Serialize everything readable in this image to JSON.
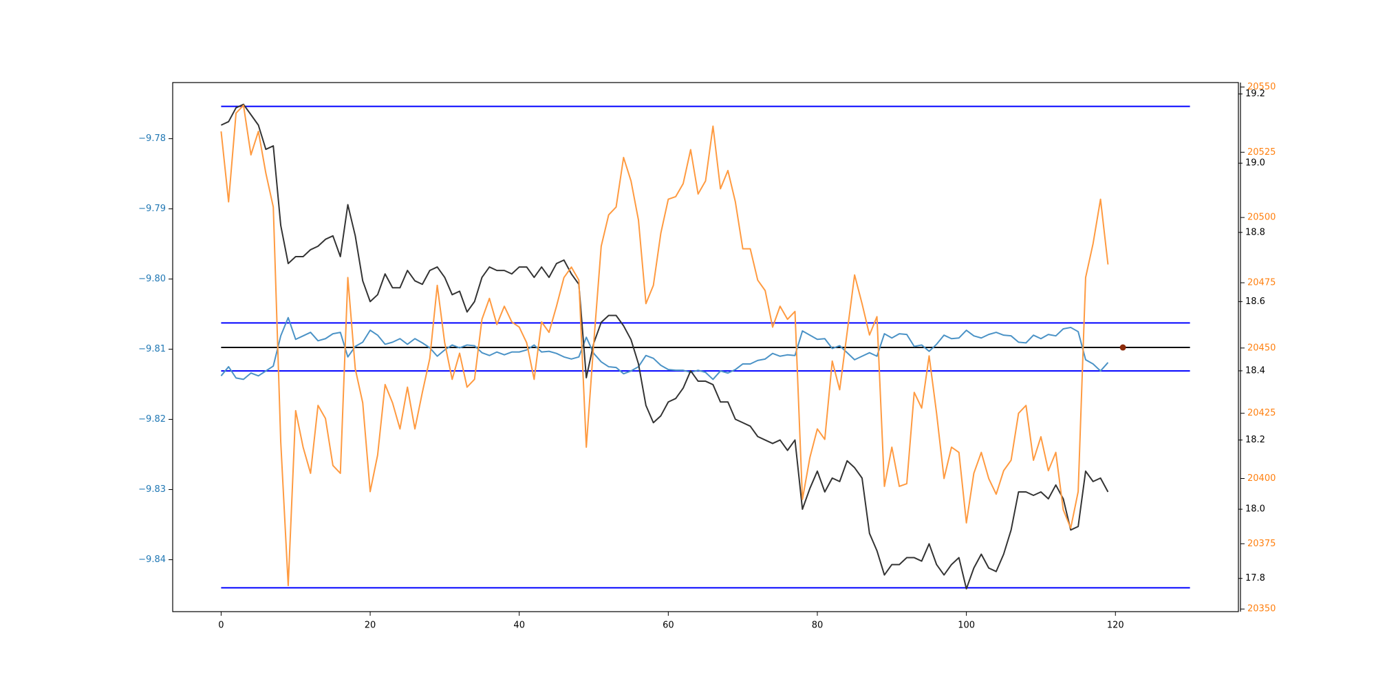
{
  "chart_data": {
    "type": "line",
    "x": [
      0,
      1,
      2,
      3,
      4,
      5,
      6,
      7,
      8,
      9,
      10,
      11,
      12,
      13,
      14,
      15,
      16,
      17,
      18,
      19,
      20,
      21,
      22,
      23,
      24,
      25,
      26,
      27,
      28,
      29,
      30,
      31,
      32,
      33,
      34,
      35,
      36,
      37,
      38,
      39,
      40,
      41,
      42,
      43,
      44,
      45,
      46,
      47,
      48,
      49,
      50,
      51,
      52,
      53,
      54,
      55,
      56,
      57,
      58,
      59,
      60,
      61,
      62,
      63,
      64,
      65,
      66,
      67,
      68,
      69,
      70,
      71,
      72,
      73,
      74,
      75,
      76,
      77,
      78,
      79,
      80,
      81,
      82,
      83,
      84,
      85,
      86,
      87,
      88,
      89,
      90,
      91,
      92,
      93,
      94,
      95,
      96,
      97,
      98,
      99,
      100,
      101,
      102,
      103,
      104,
      105,
      106,
      107,
      108,
      109,
      110,
      111,
      112,
      113,
      114,
      115,
      116,
      117,
      118,
      119
    ],
    "xlim": [
      -6.5,
      136.5
    ],
    "xticks": [
      0,
      20,
      40,
      60,
      80,
      100,
      120
    ],
    "ylim": [
      -9.8474,
      -9.772
    ],
    "yticks": [
      {
        "value": -9.84,
        "label": "−9.84"
      },
      {
        "value": -9.83,
        "label": "−9.83"
      },
      {
        "value": -9.82,
        "label": "−9.82"
      },
      {
        "value": -9.81,
        "label": "−9.81"
      },
      {
        "value": -9.8,
        "label": "−9.80"
      },
      {
        "value": -9.79,
        "label": "−9.79"
      },
      {
        "value": -9.78,
        "label": "−9.78"
      }
    ],
    "ytick_color": "#1f77b4",
    "y2lim": [
      17.704,
      19.233
    ],
    "y2ticks": [
      17.8,
      {
        "value": 18,
        "label": "18.0"
      },
      18.2,
      18.4,
      18.6,
      18.8,
      {
        "value": 19,
        "label": "19.0"
      },
      19.2
    ],
    "y2tick_color": "#000000",
    "y3lim": [
      20349,
      20551.7
    ],
    "y3ticks": [
      20350,
      20375,
      20400,
      20425,
      20450,
      20475,
      20500,
      20525,
      20550
    ],
    "y3tick_color": "#ff7f0e",
    "series": [
      {
        "color": "#4a92c6",
        "axis": "y",
        "values": [
          -9.8138,
          -9.8125,
          -9.8141,
          -9.8143,
          -9.8134,
          -9.8138,
          -9.8131,
          -9.8124,
          -9.8081,
          -9.8055,
          -9.8086,
          -9.8081,
          -9.8076,
          -9.8088,
          -9.8085,
          -9.8078,
          -9.8076,
          -9.8111,
          -9.8096,
          -9.809,
          -9.8073,
          -9.808,
          -9.8093,
          -9.809,
          -9.8085,
          -9.8093,
          -9.8085,
          -9.8091,
          -9.8098,
          -9.811,
          -9.8101,
          -9.8094,
          -9.8098,
          -9.8094,
          -9.8095,
          -9.8105,
          -9.8109,
          -9.8104,
          -9.8108,
          -9.8104,
          -9.8104,
          -9.8101,
          -9.8094,
          -9.8104,
          -9.8103,
          -9.8106,
          -9.8111,
          -9.8114,
          -9.8111,
          -9.8083,
          -9.8106,
          -9.8118,
          -9.8125,
          -9.8126,
          -9.8135,
          -9.8131,
          -9.8125,
          -9.8109,
          -9.8113,
          -9.8123,
          -9.8129,
          -9.813,
          -9.813,
          -9.8133,
          -9.813,
          -9.8133,
          -9.8143,
          -9.8131,
          -9.8134,
          -9.8129,
          -9.8121,
          -9.8121,
          -9.8116,
          -9.8114,
          -9.8106,
          -9.811,
          -9.8108,
          -9.8109,
          -9.8074,
          -9.808,
          -9.8086,
          -9.8085,
          -9.8099,
          -9.8095,
          -9.8105,
          -9.8115,
          -9.811,
          -9.8105,
          -9.811,
          -9.8078,
          -9.8084,
          -9.8078,
          -9.8079,
          -9.8096,
          -9.8094,
          -9.8103,
          -9.8093,
          -9.808,
          -9.8085,
          -9.8084,
          -9.8073,
          -9.8081,
          -9.8084,
          -9.8079,
          -9.8076,
          -9.808,
          -9.8081,
          -9.809,
          -9.8091,
          -9.808,
          -9.8085,
          -9.8079,
          -9.8081,
          -9.8071,
          -9.8069,
          -9.8075,
          -9.8115,
          -9.8121,
          -9.8131,
          -9.8119
        ]
      },
      {
        "color": "#333333",
        "axis": "y2",
        "values": [
          19.11,
          19.12,
          19.16,
          19.17,
          19.14,
          19.11,
          19.04,
          19.05,
          18.82,
          18.71,
          18.73,
          18.73,
          18.75,
          18.76,
          18.78,
          18.79,
          18.73,
          18.88,
          18.79,
          18.66,
          18.6,
          18.62,
          18.68,
          18.64,
          18.64,
          18.69,
          18.66,
          18.65,
          18.69,
          18.7,
          18.67,
          18.62,
          18.63,
          18.57,
          18.6,
          18.67,
          18.7,
          18.69,
          18.69,
          18.68,
          18.7,
          18.7,
          18.67,
          18.7,
          18.67,
          18.71,
          18.72,
          18.68,
          18.65,
          18.38,
          18.48,
          18.54,
          18.56,
          18.56,
          18.53,
          18.49,
          18.42,
          18.3,
          18.25,
          18.27,
          18.31,
          18.32,
          18.35,
          18.4,
          18.37,
          18.37,
          18.36,
          18.31,
          18.31,
          18.26,
          18.25,
          18.24,
          18.21,
          18.2,
          18.19,
          18.2,
          18.17,
          18.2,
          18.0,
          18.06,
          18.11,
          18.05,
          18.09,
          18.08,
          18.14,
          18.12,
          18.09,
          17.93,
          17.88,
          17.81,
          17.84,
          17.84,
          17.86,
          17.86,
          17.85,
          17.9,
          17.84,
          17.81,
          17.84,
          17.86,
          17.77,
          17.83,
          17.87,
          17.83,
          17.82,
          17.87,
          17.94,
          18.05,
          18.05,
          18.04,
          18.05,
          18.03,
          18.07,
          18.03,
          17.94,
          17.95,
          18.11,
          18.08,
          18.09,
          18.05
        ]
      },
      {
        "color": "#ff9a40",
        "axis": "y3",
        "values": [
          20533,
          20506,
          20540,
          20543,
          20524,
          20533,
          20517,
          20504,
          20414,
          20359,
          20426,
          20412,
          20402,
          20428,
          20423,
          20405,
          20402,
          20477,
          20442,
          20429,
          20395,
          20409,
          20436,
          20429,
          20419,
          20435,
          20419,
          20433,
          20446,
          20474,
          20452,
          20438,
          20448,
          20435,
          20438,
          20461,
          20469,
          20459,
          20466,
          20460,
          20458,
          20452,
          20438,
          20460,
          20456,
          20466,
          20477,
          20481,
          20476,
          20412,
          20452,
          20489,
          20501,
          20504,
          20523,
          20514,
          20499,
          20467,
          20474,
          20494,
          20507,
          20508,
          20513,
          20526,
          20509,
          20514,
          20535,
          20511,
          20518,
          20506,
          20488,
          20488,
          20476,
          20472,
          20458,
          20466,
          20461,
          20464,
          20392,
          20408,
          20419,
          20415,
          20445,
          20434,
          20456,
          20478,
          20467,
          20455,
          20462,
          20397,
          20412,
          20397,
          20398,
          20433,
          20427,
          20447,
          20425,
          20400,
          20412,
          20410,
          20383,
          20402,
          20410,
          20400,
          20394,
          20403,
          20407,
          20425,
          20428,
          20407,
          20416,
          20403,
          20410,
          20388,
          20381,
          20395,
          20477,
          20490,
          20507,
          20482
        ]
      }
    ],
    "hlines": [
      {
        "y": -9.7754,
        "xmin": 0,
        "xmax": 130,
        "color": "#0000ff"
      },
      {
        "y": -9.80625,
        "xmin": 0,
        "xmax": 130,
        "color": "#0000ff"
      },
      {
        "y": -9.80975,
        "xmin": 0,
        "xmax": 130,
        "color": "#000000"
      },
      {
        "y": -9.8131,
        "xmin": 0,
        "xmax": 130,
        "color": "#0000ff"
      },
      {
        "y": -9.844,
        "xmin": 0,
        "xmax": 130,
        "color": "#0000ff"
      }
    ],
    "points": [
      {
        "x": 121,
        "y": -9.80975,
        "color": "#8b2a0a"
      }
    ]
  }
}
